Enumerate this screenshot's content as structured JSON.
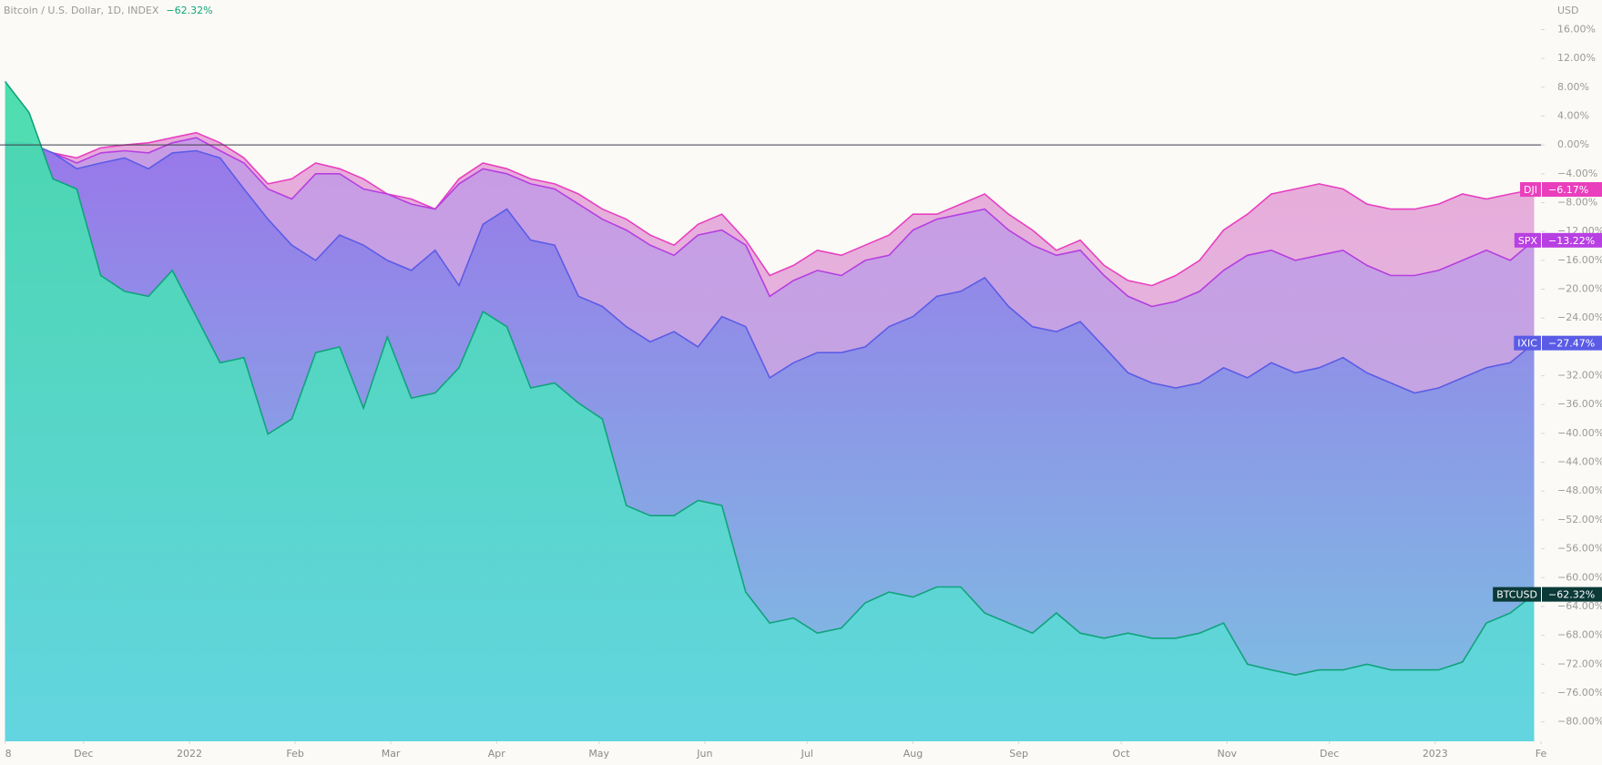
{
  "chart_data": {
    "type": "area",
    "title": "Bitcoin / U.S. Dollar, 1D, INDEX",
    "title_change": "−62.32%",
    "y_unit": "USD",
    "xlim": [
      -1.5,
      450
    ],
    "ylim": [
      -82.7,
      20.1
    ],
    "xticks": [
      {
        "value": 0,
        "label": "8"
      },
      {
        "value": 23,
        "label": "Dec"
      },
      {
        "value": 54,
        "label": "2022"
      },
      {
        "value": 85,
        "label": "Feb"
      },
      {
        "value": 113,
        "label": "Mar"
      },
      {
        "value": 144,
        "label": "Apr"
      },
      {
        "value": 174,
        "label": "May"
      },
      {
        "value": 205,
        "label": "Jun"
      },
      {
        "value": 235,
        "label": "Jul"
      },
      {
        "value": 266,
        "label": "Aug"
      },
      {
        "value": 297,
        "label": "Sep"
      },
      {
        "value": 327,
        "label": "Oct"
      },
      {
        "value": 358,
        "label": "Nov"
      },
      {
        "value": 388,
        "label": "Dec"
      },
      {
        "value": 419,
        "label": "2023"
      },
      {
        "value": 450,
        "label": "Fe"
      }
    ],
    "yticks": [
      {
        "value": 16,
        "label": "16.00%"
      },
      {
        "value": 12,
        "label": "12.00%"
      },
      {
        "value": 8,
        "label": "8.00%"
      },
      {
        "value": 4,
        "label": "4.00%"
      },
      {
        "value": 0,
        "label": "0.00%"
      },
      {
        "value": -4,
        "label": "−4.00%"
      },
      {
        "value": -8,
        "label": "−8.00%"
      },
      {
        "value": -12,
        "label": "−12.00%"
      },
      {
        "value": -16,
        "label": "−16.00%"
      },
      {
        "value": -20,
        "label": "−20.00%"
      },
      {
        "value": -24,
        "label": "−24.00%"
      },
      {
        "value": -28,
        "label": "−28.00%"
      },
      {
        "value": -32,
        "label": "−32.00%"
      },
      {
        "value": -36,
        "label": "−36.00%"
      },
      {
        "value": -40,
        "label": "−40.00%"
      },
      {
        "value": -44,
        "label": "−44.00%"
      },
      {
        "value": -48,
        "label": "−48.00%"
      },
      {
        "value": -52,
        "label": "−52.00%"
      },
      {
        "value": -56,
        "label": "−56.00%"
      },
      {
        "value": -60,
        "label": "−60.00%"
      },
      {
        "value": -64,
        "label": "−64.00%"
      },
      {
        "value": -68,
        "label": "−68.00%"
      },
      {
        "value": -72,
        "label": "−72.00%"
      },
      {
        "value": -76,
        "label": "−76.00%"
      },
      {
        "value": -80,
        "label": "−80.00%"
      }
    ],
    "x": [
      0,
      7,
      14,
      21,
      28,
      35,
      42,
      49,
      56,
      63,
      70,
      77,
      84,
      91,
      98,
      105,
      112,
      119,
      126,
      133,
      140,
      147,
      154,
      161,
      168,
      175,
      182,
      189,
      196,
      203,
      210,
      217,
      224,
      231,
      238,
      245,
      252,
      259,
      266,
      273,
      280,
      287,
      294,
      301,
      308,
      315,
      322,
      329,
      336,
      343,
      350,
      357,
      364,
      371,
      378,
      385,
      392,
      399,
      406,
      413,
      420,
      427,
      434,
      441,
      448
    ],
    "series": [
      {
        "name": "DJI",
        "color": "#e93fc0",
        "fill_gradient": [
          "#e6a6d9",
          "#e2c2e0"
        ],
        "label_bg": "#ea3fbd",
        "last_label": "−6.17%",
        "values": [
          0.3,
          -0.4,
          -1.1,
          -1.8,
          -0.4,
          0,
          0.3,
          1.0,
          1.7,
          0.3,
          -1.8,
          -5.4,
          -4.7,
          -2.5,
          -3.3,
          -4.7,
          -6.8,
          -7.5,
          -8.9,
          -4.7,
          -2.5,
          -3.3,
          -4.7,
          -5.4,
          -6.8,
          -8.9,
          -10.3,
          -12.5,
          -13.9,
          -11.0,
          -9.6,
          -13.2,
          -18.1,
          -16.7,
          -14.6,
          -15.3,
          -13.9,
          -12.5,
          -9.6,
          -9.6,
          -8.2,
          -6.8,
          -9.6,
          -11.8,
          -14.6,
          -13.2,
          -16.7,
          -18.8,
          -19.5,
          -18.1,
          -16.0,
          -11.8,
          -9.6,
          -6.8,
          -6.1,
          -5.4,
          -6.1,
          -8.2,
          -8.9,
          -8.9,
          -8.2,
          -6.8,
          -7.5,
          -6.8,
          -6.17
        ]
      },
      {
        "name": "SPX",
        "color": "#b53fe0",
        "fill_gradient": [
          "#c79ae6",
          "#bab0dd"
        ],
        "label_bg": "#b840e2",
        "last_label": "−13.22%",
        "values": [
          0.3,
          -0.1,
          -1.1,
          -2.5,
          -1.1,
          -0.8,
          -1.1,
          0.3,
          1.0,
          -0.8,
          -2.5,
          -6.1,
          -7.5,
          -4.0,
          -4.0,
          -6.1,
          -6.8,
          -8.2,
          -8.9,
          -5.4,
          -3.3,
          -4.0,
          -5.4,
          -6.1,
          -8.2,
          -10.3,
          -11.8,
          -13.9,
          -15.3,
          -12.5,
          -11.8,
          -13.9,
          -21.0,
          -18.8,
          -17.4,
          -18.1,
          -16.0,
          -15.3,
          -11.8,
          -10.3,
          -9.6,
          -8.9,
          -11.8,
          -13.9,
          -15.3,
          -14.6,
          -18.1,
          -21.0,
          -22.4,
          -21.7,
          -20.3,
          -17.4,
          -15.3,
          -14.6,
          -16.0,
          -15.3,
          -14.6,
          -16.7,
          -18.1,
          -18.1,
          -17.4,
          -16.0,
          -14.6,
          -16.0,
          -13.22
        ]
      },
      {
        "name": "IXIC",
        "color": "#5b5ce6",
        "fill_gradient": [
          "#9676ea",
          "#78c2e2"
        ],
        "label_bg": "#5a5ce6",
        "last_label": "−27.47%",
        "values": [
          0.3,
          0.3,
          -1.1,
          -3.3,
          -2.5,
          -1.8,
          -3.3,
          -1.1,
          -0.8,
          -1.8,
          -6.1,
          -10.3,
          -13.9,
          -16.0,
          -12.5,
          -13.9,
          -16.0,
          -17.4,
          -14.6,
          -19.5,
          -11.0,
          -8.9,
          -13.2,
          -13.9,
          -21.0,
          -22.4,
          -25.2,
          -27.3,
          -25.9,
          -28.0,
          -23.8,
          -25.2,
          -32.3,
          -30.2,
          -28.8,
          -28.8,
          -28.0,
          -25.2,
          -23.8,
          -21.0,
          -20.3,
          -18.4,
          -22.4,
          -25.2,
          -25.9,
          -24.5,
          -28.0,
          -31.6,
          -33.0,
          -33.7,
          -33.0,
          -30.9,
          -32.3,
          -30.2,
          -31.6,
          -30.9,
          -29.5,
          -31.6,
          -33.0,
          -34.4,
          -33.7,
          -32.3,
          -30.9,
          -30.2,
          -27.47
        ]
      },
      {
        "name": "BTCUSD",
        "color": "#10a37c",
        "fill_gradient": [
          "#45dcaa",
          "#62d6e0"
        ],
        "label_bg": "#0b3a38",
        "last_label": "−62.32%",
        "values": [
          8.8,
          4.5,
          -4.7,
          -6.1,
          -18.1,
          -20.3,
          -21.0,
          -17.4,
          -23.8,
          -30.2,
          -29.5,
          -40.1,
          -38.0,
          -28.8,
          -28.0,
          -36.5,
          -26.6,
          -35.1,
          -34.4,
          -30.9,
          -23.1,
          -25.2,
          -33.7,
          -33.0,
          -35.8,
          -38.0,
          -50.0,
          -51.4,
          -51.4,
          -49.3,
          -50.0,
          -62.0,
          -66.3,
          -65.6,
          -67.7,
          -67.0,
          -63.5,
          -62.0,
          -62.7,
          -61.3,
          -61.3,
          -64.9,
          -66.3,
          -67.7,
          -64.9,
          -67.7,
          -68.4,
          -67.7,
          -68.4,
          -68.4,
          -67.7,
          -66.3,
          -72.0,
          -72.8,
          -73.5,
          -72.8,
          -72.8,
          -72.0,
          -72.8,
          -72.8,
          -72.8,
          -71.7,
          -66.3,
          -64.9,
          -62.32
        ]
      }
    ]
  }
}
